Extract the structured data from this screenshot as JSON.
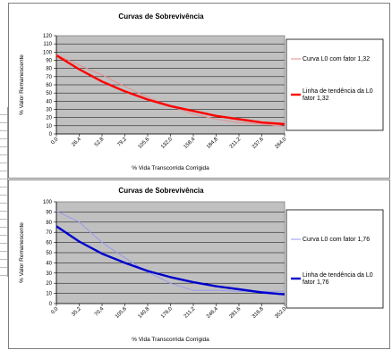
{
  "chart_data": [
    {
      "type": "line",
      "title": "Curvas de Sobrevivência",
      "xlabel": "% Vida Transcorrida Corrigida",
      "ylabel": "% Valor Remanescente",
      "ylim": [
        0,
        120
      ],
      "yticks": [
        "0",
        "10",
        "20",
        "30",
        "40",
        "50",
        "60",
        "70",
        "80",
        "90",
        "100",
        "110",
        "120"
      ],
      "categories": [
        "0,0",
        "26,4",
        "52,8",
        "79,2",
        "105,6",
        "132,0",
        "158,4",
        "184,8",
        "211,2",
        "237,6",
        "264,0"
      ],
      "grid": true,
      "legend_position": "right",
      "series": [
        {
          "name": "Curva L0 com fator 1,32",
          "color": "#e48f8f",
          "width": 1,
          "values": [
            97,
            84,
            72,
            58,
            45,
            34,
            24,
            18,
            14,
            12,
            9
          ]
        },
        {
          "name": "Linha de tendência da L0 fator 1,32",
          "color": "#ff0000",
          "width": 2.4,
          "values": [
            96,
            79,
            64,
            52,
            42,
            34,
            28,
            22,
            18,
            14,
            12
          ]
        }
      ]
    },
    {
      "type": "line",
      "title": "Curvas de Sobrevivência",
      "xlabel": "% Vida Transcorrida Corrigida",
      "ylabel": "% Valor Remanescente",
      "ylim": [
        0,
        100
      ],
      "yticks": [
        "0",
        "10",
        "20",
        "30",
        "40",
        "50",
        "60",
        "70",
        "80",
        "90",
        "100"
      ],
      "categories": [
        "0,0",
        "35,2",
        "70,4",
        "105,6",
        "140,8",
        "176,0",
        "211,2",
        "246,4",
        "281,6",
        "316,8",
        "352,0"
      ],
      "grid": true,
      "legend_position": "right",
      "series": [
        {
          "name": "Curva L0 com fator 1,76",
          "color": "#9999ee",
          "width": 1,
          "values": [
            91,
            80,
            60,
            45,
            31,
            20,
            13,
            13,
            12,
            12,
            12
          ]
        },
        {
          "name": "Linha de tendência da L0 fator 1,76",
          "color": "#0000cc",
          "width": 2.4,
          "values": [
            76,
            61,
            49,
            40,
            32,
            26,
            21,
            17,
            14,
            11,
            9
          ]
        }
      ]
    }
  ]
}
